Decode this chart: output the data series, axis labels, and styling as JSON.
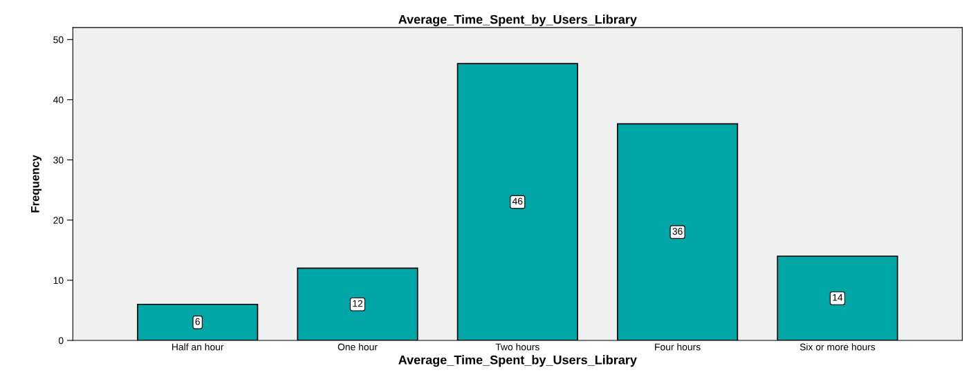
{
  "chart_data": {
    "type": "bar",
    "title": "Average_Time_Spent_by_Users_Library",
    "xlabel": "Average_Time_Spent_by_Users_Library",
    "ylabel": "Frequency",
    "categories": [
      "Half an hour",
      "One hour",
      "Two hours",
      "Four hours",
      "Six or more hours"
    ],
    "values": [
      6,
      12,
      46,
      36,
      14
    ],
    "color": "#00a6a6",
    "ylim": [
      0,
      52
    ],
    "yticks": [
      0,
      10,
      20,
      30,
      40,
      50
    ],
    "data_labels": true,
    "grid": false,
    "legend": false
  }
}
